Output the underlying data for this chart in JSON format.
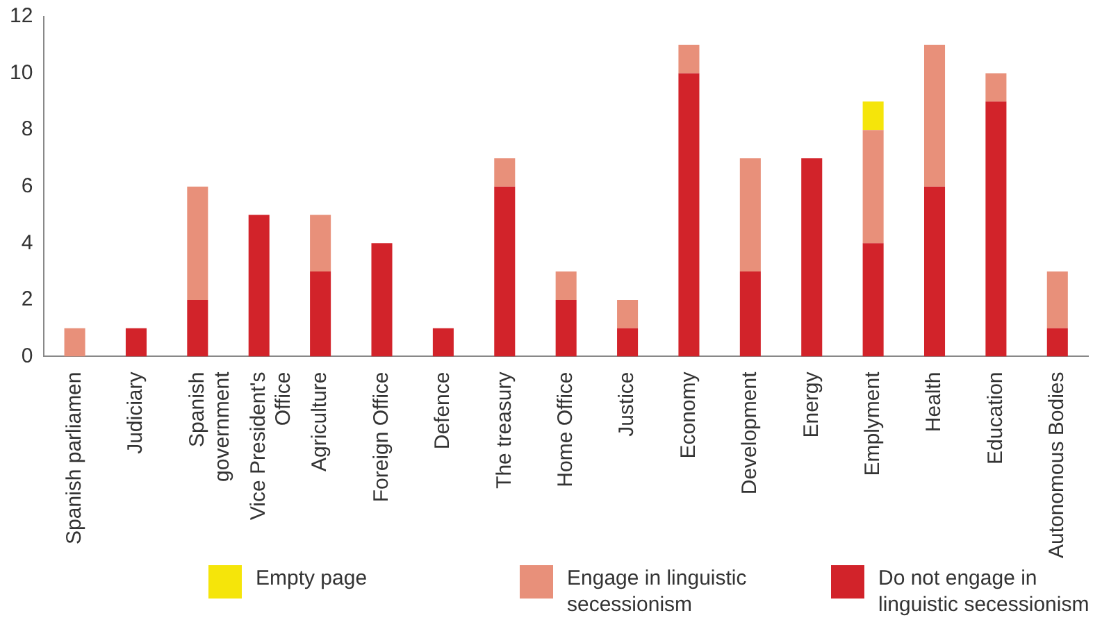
{
  "chart_data": {
    "type": "bar",
    "stacked": true,
    "categories": [
      "Spanish parliamen",
      "Judiciary",
      "Spanish\ngovernment",
      "Vice President's\nOffice",
      "Agriculture",
      "Foreign Office",
      "Defence",
      "The treasury",
      "Home Office",
      "Justice",
      "Economy",
      "Development",
      "Energy",
      "Emplyment",
      "Health",
      "Education",
      "Autonomous Bodies"
    ],
    "series": [
      {
        "name": "Do not engage in linguistic secessionism",
        "color": "#d2232a",
        "values": [
          0,
          1,
          2,
          5,
          3,
          4,
          1,
          6,
          2,
          1,
          10,
          3,
          7,
          4,
          6,
          9,
          1
        ]
      },
      {
        "name": "Engage in linguistic secessionism",
        "color": "#e8907a",
        "values": [
          1,
          0,
          4,
          0,
          2,
          0,
          0,
          1,
          1,
          1,
          1,
          4,
          0,
          4,
          5,
          1,
          2
        ]
      },
      {
        "name": "Empty page",
        "color": "#f5e50a",
        "values": [
          0,
          0,
          0,
          0,
          0,
          0,
          0,
          0,
          0,
          0,
          0,
          0,
          0,
          1,
          0,
          0,
          0
        ]
      }
    ],
    "ylim": [
      0,
      12
    ],
    "yticks": [
      0,
      2,
      4,
      6,
      8,
      10,
      12
    ],
    "grid": false,
    "legend": "bottom"
  }
}
